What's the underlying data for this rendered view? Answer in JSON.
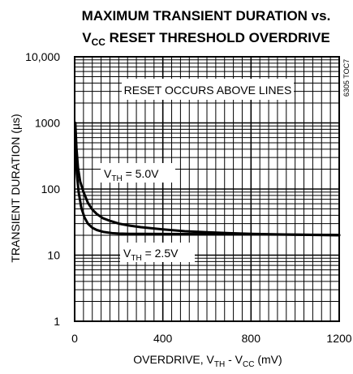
{
  "chart_data": {
    "type": "line",
    "title_line1": "MAXIMUM TRANSIENT DURATION vs.",
    "title_line2_prefix": "V",
    "title_line2_sub": "CC",
    "title_line2_suffix": " RESET THRESHOLD OVERDRIVE",
    "xlabel_prefix": "OVERDRIVE, V",
    "xlabel_sub1": "TH",
    "xlabel_mid": " - V",
    "xlabel_sub2": "CC",
    "xlabel_suffix": " (mV)",
    "ylabel": "TRANSIENT DURATION (µs)",
    "x_ticks": [
      0,
      400,
      800,
      1200
    ],
    "x_tick_labels": [
      "0",
      "400",
      "800",
      "1200"
    ],
    "y_ticks": [
      1,
      10,
      100,
      1000,
      10000
    ],
    "y_tick_labels": [
      "1",
      "10",
      "100",
      "1000",
      "10,000"
    ],
    "xlim": [
      0,
      1200
    ],
    "ylim": [
      1,
      10000
    ],
    "yscale": "log",
    "grid": true,
    "annotation": "RESET OCCURS ABOVE LINES",
    "watermark": "6305 TOC7",
    "series": [
      {
        "label_prefix": "V",
        "label_sub": "TH",
        "label_suffix": " = 5.0V",
        "x": [
          3,
          8,
          15,
          25,
          40,
          60,
          80,
          100,
          130,
          160,
          200,
          250,
          300,
          400,
          500,
          600,
          700,
          800,
          900,
          1000,
          1100,
          1200
        ],
        "y": [
          1000,
          420,
          210,
          130,
          90,
          62,
          49,
          42,
          36,
          33,
          30,
          28,
          26.5,
          24.5,
          23,
          22.2,
          21.5,
          21,
          20.7,
          20.4,
          20.2,
          20
        ]
      },
      {
        "label_prefix": "V",
        "label_sub": "TH",
        "label_suffix": " = 2.5V",
        "x": [
          2,
          5,
          10,
          18,
          30,
          45,
          60,
          80,
          100,
          130,
          170,
          200,
          250,
          300,
          400,
          600,
          800,
          1000,
          1200
        ],
        "y": [
          1000,
          400,
          170,
          90,
          52,
          37,
          30,
          26,
          24,
          22.5,
          21.5,
          21.2,
          21,
          21,
          20.9,
          20.8,
          20.6,
          20.4,
          20.2
        ]
      }
    ]
  }
}
